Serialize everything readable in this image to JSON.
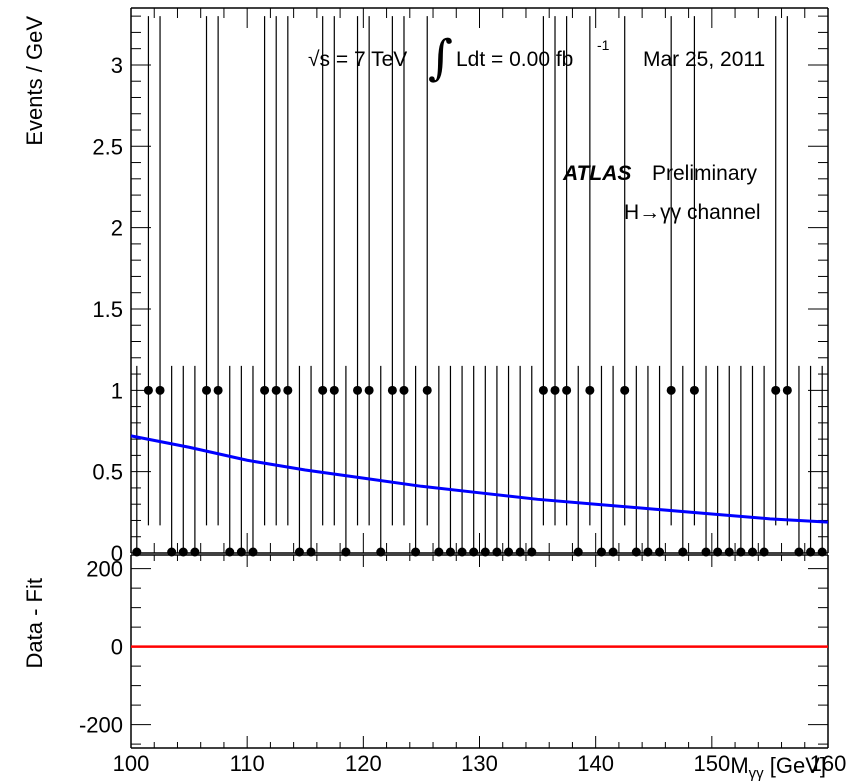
{
  "chart_data": [
    {
      "type": "scatter",
      "panel": "main",
      "ylabel": "Events / GeV",
      "xlim": [
        100,
        160
      ],
      "ylim": [
        0,
        3.35
      ],
      "yticks": [
        "0",
        "0.5",
        "1",
        "1.5",
        "2",
        "2.5",
        "3"
      ],
      "annotations": {
        "energy": "√s = 7 TeV",
        "lumi_int": "∫",
        "lumi_text": "Ldt = 0.00 fb",
        "lumi_exp": "-1",
        "date": "Mar 25, 2011",
        "atlas": "ATLAS",
        "preliminary": "Preliminary",
        "channel": "H→γγ channel"
      },
      "series": [
        {
          "kind": "data",
          "x": [
            100.5,
            101.5,
            102.5,
            103.5,
            104.5,
            105.5,
            106.5,
            107.5,
            108.5,
            109.5,
            110.5,
            111.5,
            112.5,
            113.5,
            114.5,
            115.5,
            116.5,
            117.5,
            118.5,
            119.5,
            120.5,
            121.5,
            122.5,
            123.5,
            124.5,
            125.5,
            126.5,
            127.5,
            128.5,
            129.5,
            130.5,
            131.5,
            132.5,
            133.5,
            134.5,
            135.5,
            136.5,
            137.5,
            138.5,
            139.5,
            140.5,
            141.5,
            142.5,
            143.5,
            144.5,
            145.5,
            146.5,
            147.5,
            148.5,
            149.5,
            150.5,
            151.5,
            152.5,
            153.5,
            154.5,
            155.5,
            156.5,
            157.5,
            158.5,
            159.5
          ],
          "y": [
            0,
            1,
            1,
            0,
            0,
            0,
            1,
            1,
            0,
            0,
            0,
            1,
            1,
            1,
            0,
            0,
            1,
            1,
            0,
            1,
            1,
            0,
            1,
            1,
            0,
            1,
            0,
            0,
            0,
            0,
            0,
            0,
            0,
            0,
            0,
            1,
            1,
            1,
            0,
            1,
            0,
            0,
            1,
            0,
            0,
            0,
            1,
            0,
            1,
            0,
            0,
            0,
            0,
            0,
            0,
            1,
            1,
            0,
            0,
            0
          ],
          "y_err_up": [
            1.15,
            2.3,
            2.3,
            1.15,
            1.15,
            1.15,
            2.3,
            2.3,
            1.15,
            1.15,
            1.15,
            2.3,
            2.3,
            2.3,
            1.15,
            1.15,
            2.3,
            2.3,
            1.15,
            2.3,
            2.3,
            1.15,
            2.3,
            2.3,
            1.15,
            2.3,
            1.15,
            1.15,
            1.15,
            1.15,
            1.15,
            1.15,
            1.15,
            1.15,
            1.15,
            2.3,
            2.3,
            2.3,
            1.15,
            2.3,
            1.15,
            1.15,
            2.3,
            1.15,
            1.15,
            1.15,
            2.3,
            1.15,
            2.3,
            1.15,
            1.15,
            1.15,
            1.15,
            1.15,
            1.15,
            2.3,
            2.3,
            1.15,
            1.15,
            1.15
          ],
          "y_err_down": [
            0,
            0.83,
            0.83,
            0,
            0,
            0,
            0.83,
            0.83,
            0,
            0,
            0,
            0.83,
            0.83,
            0.83,
            0,
            0,
            0.83,
            0.83,
            0,
            0.83,
            0.83,
            0,
            0.83,
            0.83,
            0,
            0.83,
            0,
            0,
            0,
            0,
            0,
            0,
            0,
            0,
            0,
            0.83,
            0.83,
            0.83,
            0,
            0.83,
            0,
            0,
            0.83,
            0,
            0,
            0,
            0.83,
            0,
            0.83,
            0,
            0,
            0,
            0,
            0,
            0,
            0.83,
            0.83,
            0,
            0,
            0
          ]
        },
        {
          "kind": "fit",
          "color": "#0000ff",
          "x": [
            100,
            105,
            110,
            115,
            120,
            125,
            130,
            135,
            140,
            145,
            150,
            155,
            160
          ],
          "y": [
            0.72,
            0.65,
            0.57,
            0.51,
            0.46,
            0.41,
            0.37,
            0.33,
            0.3,
            0.27,
            0.24,
            0.21,
            0.19
          ]
        }
      ]
    },
    {
      "type": "line",
      "panel": "residual",
      "xlabel_main": "M",
      "xlabel_sub": "γγ",
      "xlabel_unit": " [GeV]",
      "ylabel": "Data - Fit",
      "xlim": [
        100,
        160
      ],
      "ylim": [
        -260,
        235
      ],
      "xticks": [
        "100",
        "110",
        "120",
        "130",
        "140",
        "150",
        "160"
      ],
      "yticks": [
        "-200",
        "0",
        "200"
      ],
      "series": [
        {
          "kind": "residual",
          "color": "#ff0000",
          "x": [
            100,
            160
          ],
          "y": [
            0,
            0
          ]
        }
      ]
    }
  ]
}
